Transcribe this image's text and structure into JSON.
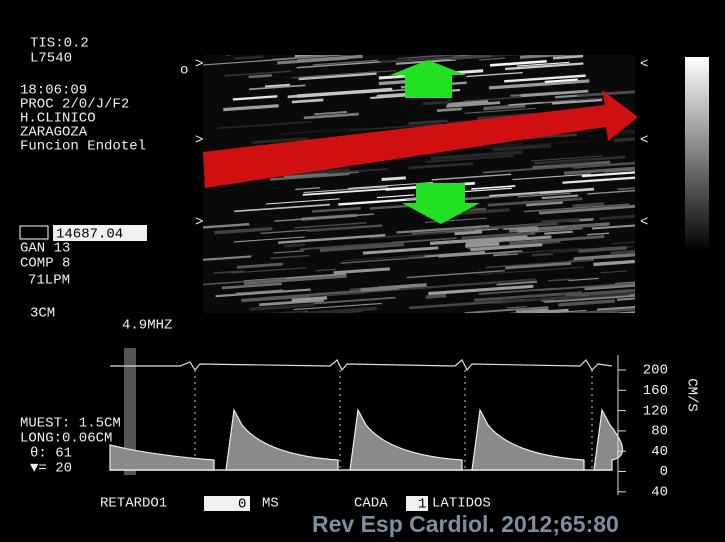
{
  "left_info": [
    "TIS:0.2",
    "L7540",
    "18:06:09",
    "PROC 2/0/J/F2",
    "H.CLINICO",
    "ZARAGOZA",
    "Funcion Endotel"
  ],
  "settings": {
    "depth_value": "14687.04",
    "gain": "GAN  13",
    "comp": "COMP  8",
    "heart_rate": "71LPM",
    "depth": "3CM",
    "frequency": "4.9MHZ"
  },
  "doppler": {
    "sample": "MUEST: 1.5CM",
    "length": "LONG:0.06CM",
    "angle": "θ: 61",
    "marker": "▼= 20",
    "scale": [
      200,
      160,
      120,
      80,
      40,
      0,
      40
    ],
    "unit": "CM/S"
  },
  "footer": {
    "delay_label": "RETARDO1",
    "delay_value": "0",
    "delay_unit": "MS",
    "every_label": "CADA",
    "every_value": "1",
    "every_unit": "LATIDOS"
  },
  "caption": "Rev Esp Cardiol. 2012;65:80"
}
